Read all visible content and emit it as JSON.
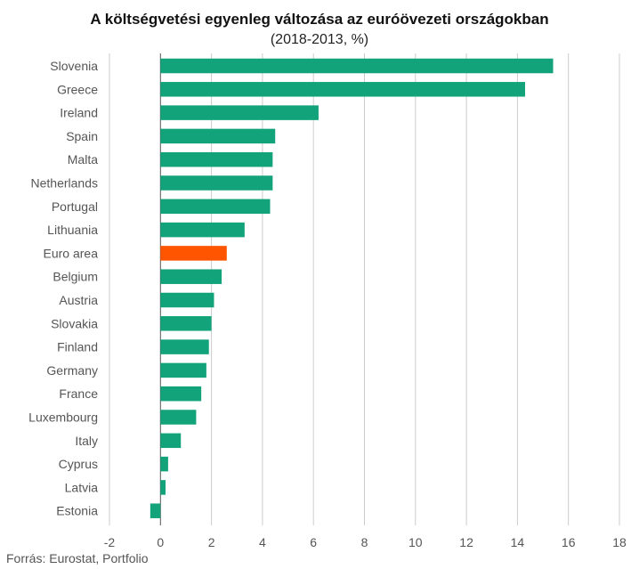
{
  "chart_data": {
    "type": "bar",
    "orientation": "horizontal",
    "title": "A költségvetési egyenleg változása az euróövezeti országokban",
    "subtitle": "(2018-2013, %)",
    "source": "Forrás: Eurostat, Portfolio",
    "categories": [
      "Slovenia",
      "Greece",
      "Ireland",
      "Spain",
      "Malta",
      "Netherlands",
      "Portugal",
      "Lithuania",
      "Euro area",
      "Belgium",
      "Austria",
      "Slovakia",
      "Finland",
      "Germany",
      "France",
      "Luxembourg",
      "Italy",
      "Cyprus",
      "Latvia",
      "Estonia"
    ],
    "values": [
      15.4,
      14.3,
      6.2,
      4.5,
      4.4,
      4.4,
      4.3,
      3.3,
      2.6,
      2.4,
      2.1,
      2.0,
      1.9,
      1.8,
      1.6,
      1.4,
      0.8,
      0.3,
      0.2,
      -0.4
    ],
    "highlight_category": "Euro area",
    "xlim": [
      -2,
      18
    ],
    "xticks": [
      "-2",
      "0",
      "2",
      "4",
      "6",
      "8",
      "10",
      "12",
      "14",
      "16",
      "18"
    ],
    "grid": true,
    "colors": {
      "bar": "#12a37a",
      "highlight": "#ff5500",
      "grid": "#cccccc",
      "zero_line": "#555555"
    }
  }
}
